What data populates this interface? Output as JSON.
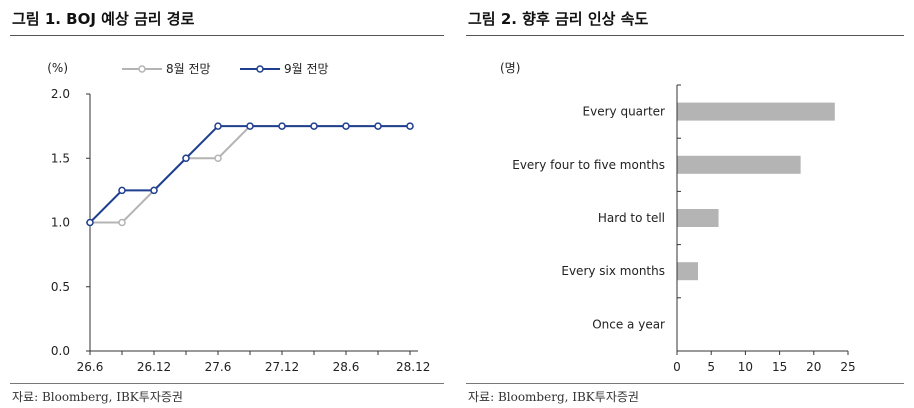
{
  "left_panel": {
    "title": "그림 1. BOJ 예상 금리 경로",
    "source": "자료: Bloomberg, IBK투자증권"
  },
  "right_panel": {
    "title": "그림 2. 향후 금리 인상 속도",
    "source": "자료: Bloomberg, IBK투자증권"
  },
  "colors": {
    "aug_series": "#b4b4b4",
    "sep_series": "#1f3f8f",
    "bar": "#b4b4b4"
  },
  "chart_data": [
    {
      "type": "line",
      "unit_label": "(%)",
      "x": [
        "26.6",
        "26.9",
        "26.12",
        "27.3",
        "27.6",
        "27.9",
        "27.12",
        "28.3",
        "28.6",
        "28.9",
        "28.12"
      ],
      "x_tick_labels": [
        "26.6",
        "26.12",
        "27.6",
        "27.12",
        "28.6",
        "28.12"
      ],
      "x_tick_index": [
        0,
        2,
        4,
        6,
        8,
        10
      ],
      "series": [
        {
          "name": "8월 전망",
          "values": [
            1.0,
            1.0,
            1.25,
            1.5,
            1.5,
            1.75,
            1.75,
            1.75,
            1.75,
            1.75,
            1.75
          ]
        },
        {
          "name": "9월 전망",
          "values": [
            1.0,
            1.25,
            1.25,
            1.5,
            1.75,
            1.75,
            1.75,
            1.75,
            1.75,
            1.75,
            1.75
          ]
        }
      ],
      "ylim": [
        0.0,
        2.0
      ],
      "y_ticks": [
        "0.0",
        "0.5",
        "1.0",
        "1.5",
        "2.0"
      ],
      "legend_position": "top",
      "grid": false
    },
    {
      "type": "bar",
      "orientation": "horizontal",
      "unit_label": "(명)",
      "categories": [
        "Every quarter",
        "Every four to five months",
        "Hard to tell",
        "Every six months",
        "Once a year"
      ],
      "values": [
        23,
        18,
        6,
        3,
        0
      ],
      "xlim": [
        0,
        25
      ],
      "x_ticks": [
        "0",
        "5",
        "10",
        "15",
        "20",
        "25"
      ],
      "grid": false
    }
  ]
}
